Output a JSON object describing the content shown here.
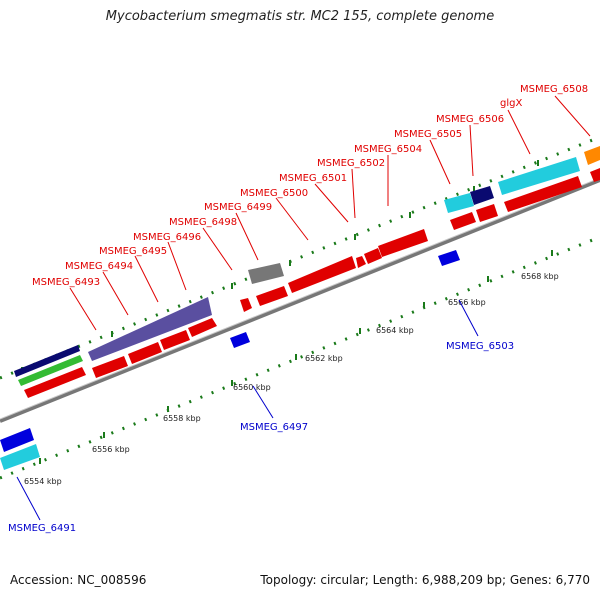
{
  "title": "Mycobacterium smegmatis str. MC2 155, complete genome",
  "footer": {
    "accession": "Accession: NC_008596",
    "topology": "Topology: circular; Length: 6,988,209 bp; Genes: 6,770"
  },
  "colors": {
    "forward_label": "#e00000",
    "reverse_label": "#0000cc",
    "backbone": "#888888",
    "tick": "#1a7a1a"
  },
  "ticks": [
    "6554 kbp",
    "6556 kbp",
    "6558 kbp",
    "6560 kbp",
    "6562 kbp",
    "6564 kbp",
    "6566 kbp",
    "6568 kbp"
  ],
  "forward_labels": [
    "MSMEG_6493",
    "MSMEG_6494",
    "MSMEG_6495",
    "MSMEG_6496",
    "MSMEG_6498",
    "MSMEG_6499",
    "MSMEG_6500",
    "MSMEG_6501",
    "MSMEG_6502",
    "MSMEG_6504",
    "MSMEG_6505",
    "MSMEG_6506",
    "glgX",
    "MSMEG_6508"
  ],
  "reverse_labels": [
    "MSMEG_6491",
    "MSMEG_6497",
    "MSMEG_6503"
  ]
}
